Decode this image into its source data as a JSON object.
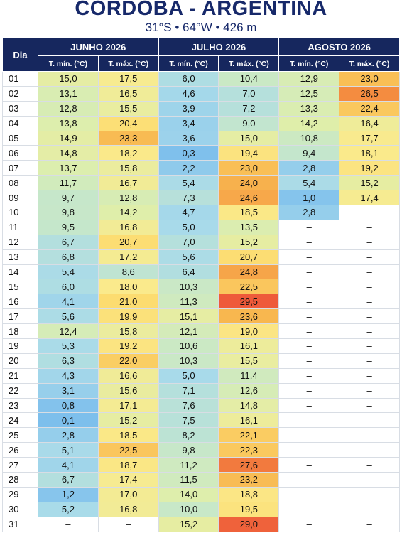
{
  "header": {
    "title": "CORDOBA - ARGENTINA",
    "subtitle": "31°S • 64°W • 426 m"
  },
  "table": {
    "day_header": "Dia",
    "months": [
      {
        "name": "JUNHO 2026",
        "columns": [
          "T. mín. (°C)",
          "T. máx. (°C)"
        ]
      },
      {
        "name": "JULHO 2026",
        "columns": [
          "T. mín. (°C)",
          "T. máx. (°C)"
        ]
      },
      {
        "name": "AGOSTO 2026",
        "columns": [
          "T. mín. (°C)",
          "T. máx. (°C)"
        ]
      }
    ],
    "rows": [
      [
        "01",
        "15,0",
        "17,5",
        "6,0",
        "10,4",
        "12,9",
        "23,0"
      ],
      [
        "02",
        "13,1",
        "16,5",
        "4,6",
        "7,0",
        "12,5",
        "26,5"
      ],
      [
        "03",
        "12,8",
        "15,5",
        "3,9",
        "7,2",
        "13,3",
        "22,4"
      ],
      [
        "04",
        "13,8",
        "20,4",
        "3,4",
        "9,0",
        "14,2",
        "16,4"
      ],
      [
        "05",
        "14,9",
        "23,3",
        "3,6",
        "15,0",
        "10,8",
        "17,7"
      ],
      [
        "06",
        "14,8",
        "18,2",
        "0,3",
        "19,4",
        "9,4",
        "18,1"
      ],
      [
        "07",
        "13,7",
        "15,8",
        "2,2",
        "23,0",
        "2,8",
        "19,2"
      ],
      [
        "08",
        "11,7",
        "16,7",
        "5,4",
        "24,0",
        "5,4",
        "15,2"
      ],
      [
        "09",
        "9,7",
        "12,8",
        "7,3",
        "24,6",
        "1,0",
        "17,4"
      ],
      [
        "10",
        "9,8",
        "14,2",
        "4,7",
        "18,5",
        "2,8",
        null
      ],
      [
        "11",
        "9,5",
        "16,8",
        "5,0",
        "13,5",
        "–",
        "–"
      ],
      [
        "12",
        "6,7",
        "20,7",
        "7,0",
        "15,2",
        "–",
        "–"
      ],
      [
        "13",
        "6,8",
        "17,2",
        "5,6",
        "20,7",
        "–",
        "–"
      ],
      [
        "14",
        "5,4",
        "8,6",
        "6,4",
        "24,8",
        "–",
        "–"
      ],
      [
        "15",
        "6,0",
        "18,0",
        "10,3",
        "22,5",
        "–",
        "–"
      ],
      [
        "16",
        "4,1",
        "21,0",
        "11,3",
        "29,5",
        "–",
        "–"
      ],
      [
        "17",
        "5,6",
        "19,9",
        "15,1",
        "23,6",
        "–",
        "–"
      ],
      [
        "18",
        "12,4",
        "15,8",
        "12,1",
        "19,0",
        "–",
        "–"
      ],
      [
        "19",
        "5,3",
        "19,2",
        "10,6",
        "16,1",
        "–",
        "–"
      ],
      [
        "20",
        "6,3",
        "22,0",
        "10,3",
        "15,5",
        "–",
        "–"
      ],
      [
        "21",
        "4,3",
        "16,6",
        "5,0",
        "11,4",
        "–",
        "–"
      ],
      [
        "22",
        "3,1",
        "15,6",
        "7,1",
        "12,6",
        "–",
        "–"
      ],
      [
        "23",
        "0,8",
        "17,1",
        "7,6",
        "14,8",
        "–",
        "–"
      ],
      [
        "24",
        "0,1",
        "15,2",
        "7,5",
        "16,1",
        "–",
        "–"
      ],
      [
        "25",
        "2,8",
        "18,5",
        "8,2",
        "22,1",
        "–",
        "–"
      ],
      [
        "26",
        "5,1",
        "22,5",
        "9,8",
        "22,3",
        "–",
        "–"
      ],
      [
        "27",
        "4,1",
        "18,7",
        "11,2",
        "27,6",
        "–",
        "–"
      ],
      [
        "28",
        "6,7",
        "17,4",
        "11,5",
        "23,2",
        "–",
        "–"
      ],
      [
        "29",
        "1,2",
        "17,0",
        "14,0",
        "18,8",
        "–",
        "–"
      ],
      [
        "30",
        "5,2",
        "16,8",
        "10,0",
        "19,5",
        "–",
        "–"
      ],
      [
        "31",
        "–",
        "–",
        "15,2",
        "29,0",
        "–",
        "–"
      ]
    ]
  }
}
